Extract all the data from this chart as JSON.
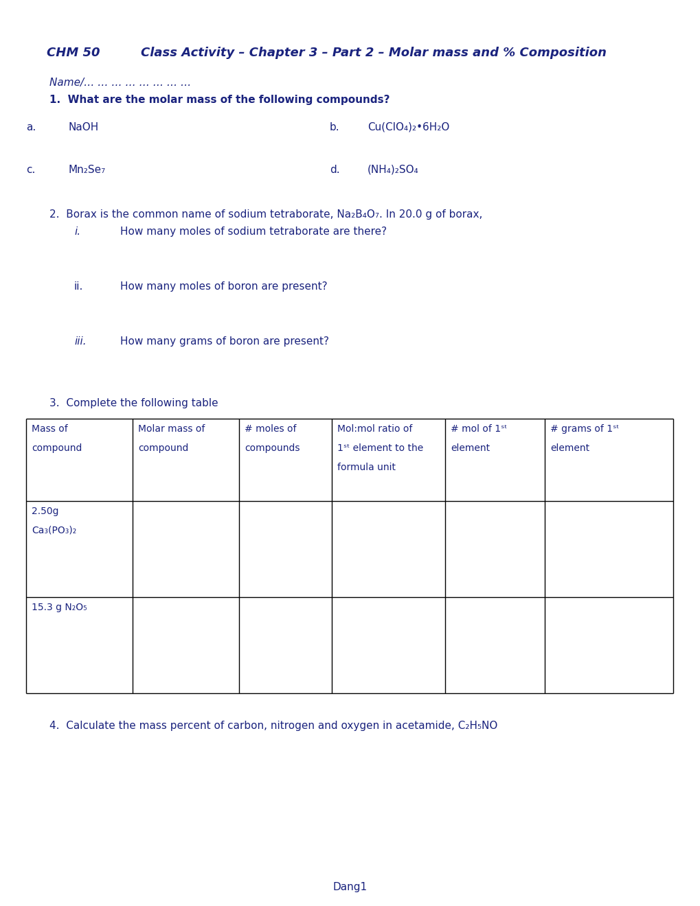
{
  "title_chm": "CHM 50",
  "title_rest": "Class Activity – Chapter 3 – Part 2 – Molar mass and % Composition",
  "text_color": "#1a237e",
  "bg_color": "#ffffff",
  "name_line": "Name/… … … … … … … …",
  "q1_bold": "1.  What are the molar mass of the following compounds?",
  "q1a_label": "a.",
  "q1a_formula": "NaOH",
  "q1b_label": "b.",
  "q1b_formula": "Cu(ClO₄)₂•6H₂O",
  "q1c_label": "c.",
  "q1c_formula": "Mn₂Se₇",
  "q1d_label": "d.",
  "q1d_formula": "(NH₄)₂SO₄",
  "q2_intro": "2.  Borax is the common name of sodium tetraborate, Na₂B₄O₇. In 20.0 g of borax,",
  "q2i_label": "i.",
  "q2i_text": "How many moles of sodium tetraborate are there?",
  "q2ii_label": "ii.",
  "q2ii_text": "How many moles of boron are present?",
  "q2iii_label": "iii.",
  "q2iii_text": "How many grams of boron are present?",
  "q3_text": "3.  Complete the following table",
  "tbl_h1": "Mass of\n\ncompound",
  "tbl_h2": "Molar mass of\n\ncompound",
  "tbl_h3": "# moles of\n\ncompounds",
  "tbl_h4": "Mol:mol ratio of\n\n1st element to the\n\nformula unit",
  "tbl_h5": "# mol of 1st\n\nelement",
  "tbl_h6": "# grams of 1st\n\nelement",
  "tbl_r1c1a": "2.50g",
  "tbl_r1c1b": "Ca₃(PO₃)₂",
  "tbl_r2c1": "15.3 g N₂O₅",
  "q4_text": "4.  Calculate the mass percent of carbon, nitrogen and oxygen in acetamide, C₂H₅NO",
  "footer": "Dang1",
  "line_color": "#000000"
}
